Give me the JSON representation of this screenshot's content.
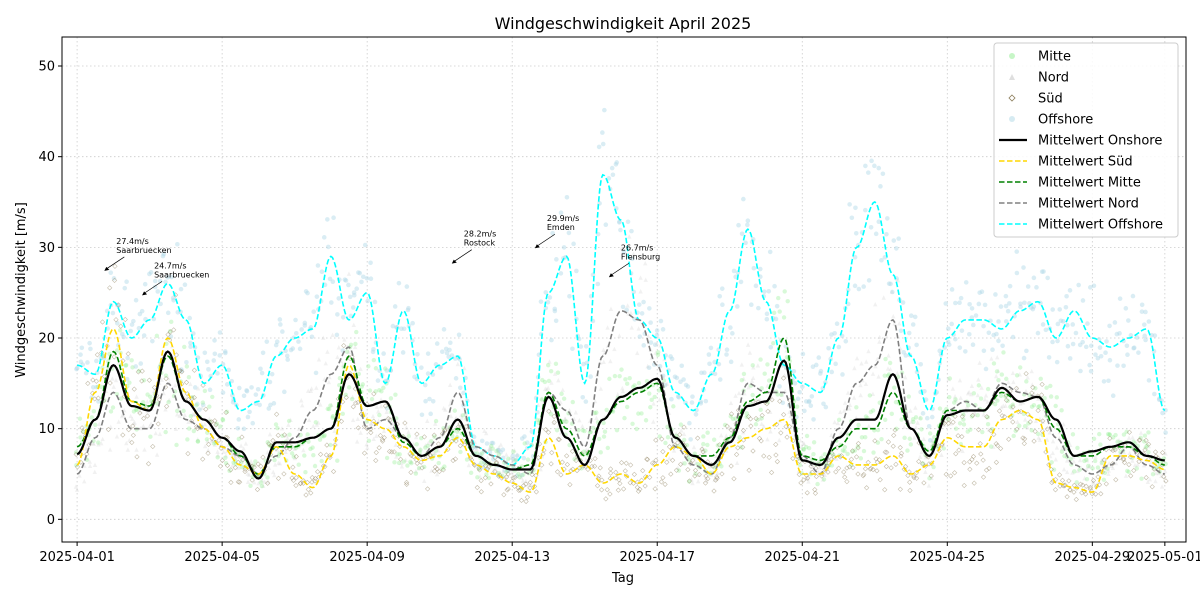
{
  "chart_data": {
    "type": "line",
    "title": "Windgeschwindigkeit April 2025",
    "xlabel": "Tag",
    "ylabel": "Windgeschwindigkeit [m/s]",
    "xlim": [
      "2025-03-31T14:00",
      "2025-05-01T14:00"
    ],
    "ylim": [
      -2.5,
      53.2
    ],
    "x_ticks": [
      "2025-04-01",
      "2025-04-05",
      "2025-04-09",
      "2025-04-13",
      "2025-04-17",
      "2025-04-21",
      "2025-04-25",
      "2025-04-29",
      "2025-05-01"
    ],
    "y_ticks": [
      0,
      10,
      20,
      30,
      40,
      50
    ],
    "grid": true,
    "legend_position": "top-right",
    "x_start": "2025-04-01T00:00",
    "x_step_hours": 12,
    "series": [
      {
        "name": "Mittelwert Onshore",
        "style": "solid",
        "color": "#000000",
        "values": [
          7.2,
          11,
          17,
          12.5,
          12,
          18.5,
          13,
          11,
          9,
          7.5,
          4.5,
          8.5,
          8.5,
          9,
          10,
          16,
          12.5,
          13,
          9,
          7,
          8,
          11,
          7,
          6,
          5.5,
          5.5,
          13.5,
          9,
          6,
          11,
          13.5,
          14.5,
          15.5,
          9,
          7,
          6,
          8.5,
          12.5,
          13,
          17.5,
          6.5,
          6,
          9,
          11,
          11,
          16,
          10,
          7,
          11.5,
          12,
          12,
          14.5,
          13,
          13.5,
          11,
          7,
          7.5,
          8,
          8.5,
          7,
          6.5,
          6,
          6,
          7,
          8,
          7.5,
          9,
          5,
          3.5,
          4.5,
          7,
          9,
          9.5,
          10,
          9.5,
          9.5,
          10,
          8.5,
          14,
          10,
          9,
          9.5,
          7.5,
          2.5,
          6,
          8.5,
          6,
          6.5,
          10.5,
          7,
          5.5,
          3.5,
          6.5,
          5.5
        ]
      },
      {
        "name": "Mittelwert Süd",
        "style": "dashed",
        "color": "#FFD700",
        "values": [
          6,
          14,
          21,
          13,
          12,
          20,
          14,
          10,
          8,
          6,
          5,
          8,
          5,
          3.5,
          7,
          17,
          11,
          10,
          8,
          6.5,
          7,
          9,
          6,
          5,
          4,
          3,
          9,
          5,
          6,
          4,
          5,
          4,
          6,
          8,
          7,
          5,
          8,
          9,
          10,
          11,
          5,
          5,
          7,
          6,
          6,
          7,
          5,
          6,
          9,
          8,
          8,
          11,
          12,
          11,
          4,
          3.5,
          3,
          7,
          7,
          6.5,
          5.5,
          5.5,
          6,
          9,
          10,
          7.5,
          8,
          4,
          3,
          4,
          7,
          9,
          10,
          10.5,
          10,
          6,
          8,
          6,
          16,
          9,
          7,
          8,
          6.5,
          2.5,
          5,
          7,
          5,
          5,
          9,
          6,
          5,
          3,
          6,
          5
        ]
      },
      {
        "name": "Mittelwert Mitte",
        "style": "dashed",
        "color": "#008000",
        "values": [
          8,
          11,
          18.5,
          13,
          12.5,
          18,
          13,
          11,
          9,
          7,
          5,
          8,
          8,
          9,
          10,
          18,
          12.5,
          13,
          8.5,
          7,
          8,
          10,
          7,
          6,
          5.5,
          6,
          14,
          10,
          7,
          11,
          13,
          14,
          15,
          9,
          7,
          7,
          9,
          13,
          14,
          20,
          7,
          6.5,
          8,
          10,
          10,
          14,
          10,
          7.5,
          12,
          12,
          12,
          14,
          13,
          13.5,
          10,
          7,
          7,
          8,
          8,
          7,
          6,
          5.5,
          5.5,
          7,
          8,
          7,
          9,
          5,
          4,
          5,
          8,
          9,
          9,
          9,
          9.5,
          10.5,
          13,
          10,
          13,
          10,
          9,
          9.5,
          8,
          3,
          6,
          8,
          6,
          5.5,
          10,
          7,
          5,
          3.5,
          6.5,
          5.5
        ]
      },
      {
        "name": "Mittelwert Nord",
        "style": "dashed",
        "color": "#808080",
        "values": [
          5,
          9,
          14,
          10,
          10,
          15,
          11,
          10,
          8,
          7,
          5,
          7,
          9,
          12,
          16,
          19,
          10,
          11,
          9,
          7,
          9,
          14,
          8,
          7,
          6,
          5,
          14,
          12,
          8,
          18,
          23,
          22,
          17,
          8,
          6,
          5,
          9,
          15,
          14,
          14,
          7,
          5,
          10,
          15,
          17,
          22,
          10,
          7,
          12,
          13,
          12,
          15,
          14,
          13.5,
          9,
          6,
          5,
          6,
          8,
          6,
          5,
          5,
          5,
          6,
          5,
          4,
          6,
          4,
          3,
          4,
          9,
          10,
          12,
          11,
          10,
          8,
          11,
          9,
          13,
          12,
          9,
          9.5,
          8,
          3.5,
          6,
          9,
          7,
          8,
          10.5,
          7,
          6,
          4,
          7,
          6
        ]
      },
      {
        "name": "Mittelwert Offshore",
        "style": "dashed",
        "color": "#00FFFF",
        "values": [
          17,
          16,
          24,
          20,
          22,
          26,
          22,
          15,
          17,
          12,
          13,
          18,
          20,
          21,
          29,
          22,
          25,
          15,
          23,
          15,
          17,
          18,
          8,
          7,
          6,
          8,
          25,
          29,
          15,
          38,
          33,
          22,
          20,
          14,
          12,
          16,
          23,
          32,
          24,
          17,
          15,
          14,
          20,
          30,
          35,
          27,
          18,
          12,
          20,
          22,
          22,
          21,
          23,
          24,
          20,
          23,
          20,
          19,
          20,
          21,
          12,
          10,
          12,
          11,
          14,
          12,
          9,
          6,
          7,
          12,
          20,
          19,
          18,
          24,
          20,
          16,
          14,
          12,
          20,
          24,
          16,
          12,
          8,
          6,
          10,
          20,
          19,
          18,
          15,
          12,
          13,
          10,
          12,
          11
        ]
      }
    ],
    "scatter_legend": [
      {
        "name": "Mitte",
        "marker": "circle",
        "color": "#90EE90"
      },
      {
        "name": "Nord",
        "marker": "triangle",
        "color": "#C0C0C0"
      },
      {
        "name": "Süd",
        "marker": "diamond",
        "color": "#8B7D5A"
      },
      {
        "name": "Offshore",
        "marker": "circle",
        "color": "#ADD8E6"
      }
    ],
    "annotations": [
      {
        "line1": "27.4m/s",
        "line2": "Saarbruecken",
        "x": "2025-04-01T18:00",
        "y": 27.4
      },
      {
        "line1": "24.7m/s",
        "line2": "Saarbruecken",
        "x": "2025-04-02T19:00",
        "y": 24.7
      },
      {
        "line1": "28.2m/s",
        "line2": "Rostock",
        "x": "2025-04-11T08:00",
        "y": 28.2
      },
      {
        "line1": "29.9m/s",
        "line2": "Emden",
        "x": "2025-04-13T15:00",
        "y": 29.9
      },
      {
        "line1": "26.7m/s",
        "line2": "Flensburg",
        "x": "2025-04-15T16:00",
        "y": 26.7
      }
    ]
  }
}
